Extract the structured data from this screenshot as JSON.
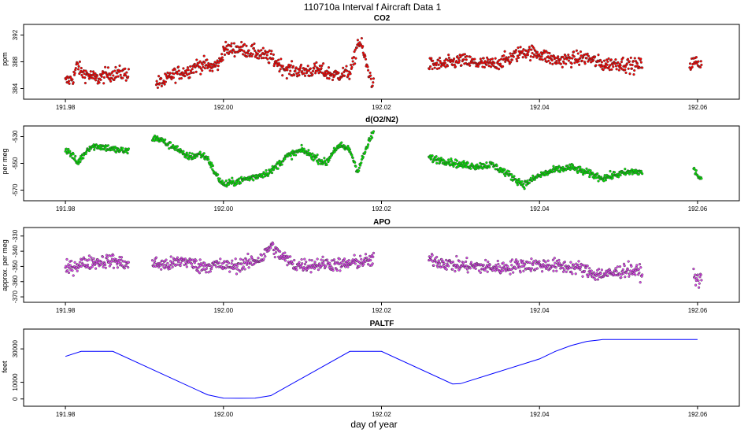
{
  "figure": {
    "title": "110710a   Interval f Aircraft Data 1",
    "xlabel": "day of year"
  },
  "chart_data": [
    {
      "type": "scatter",
      "title": "CO2",
      "ylabel": "ppm",
      "color": "#ff0000",
      "xlim": [
        191.978,
        192.062
      ],
      "ylim": [
        383.0,
        393.0
      ],
      "yticks": [
        384,
        388,
        392
      ],
      "xticks": [
        "191.98",
        "192.00",
        "192.02",
        "192.04",
        "192.06"
      ],
      "segments": [
        {
          "x": [
            191.98,
            191.981,
            191.9815,
            191.982,
            191.983,
            191.984,
            191.985,
            191.9865,
            191.988
          ],
          "y": [
            385.0,
            385.6,
            387.6,
            386.4,
            386.0,
            385.4,
            386.0,
            386.3,
            386.2
          ]
        },
        {
          "x": [
            191.9915,
            191.9925,
            191.9935,
            191.9945,
            191.9955,
            191.9965,
            191.9975,
            191.9985,
            191.9995,
            192.0,
            192.002,
            192.004,
            192.006,
            192.008,
            192.01,
            192.012,
            192.014,
            192.016,
            192.0165,
            192.017,
            192.0175,
            192.018,
            192.0185,
            192.019
          ],
          "y": [
            384.8,
            385.0,
            386.0,
            386.4,
            386.6,
            387.4,
            387.6,
            387.2,
            387.8,
            389.8,
            390.0,
            389.4,
            388.6,
            386.8,
            386.6,
            386.8,
            386.0,
            386.4,
            388.0,
            391.0,
            390.4,
            388.0,
            386.0,
            384.4
          ]
        },
        {
          "x": [
            192.026,
            192.028,
            192.03,
            192.032,
            192.034,
            192.036,
            192.038,
            192.04,
            192.042,
            192.044,
            192.046,
            192.048,
            192.05,
            192.052,
            192.053
          ],
          "y": [
            387.6,
            387.6,
            388.2,
            387.8,
            387.6,
            388.4,
            389.6,
            389.2,
            388.2,
            388.4,
            388.6,
            387.6,
            387.8,
            387.4,
            387.6
          ]
        },
        {
          "x": [
            192.059,
            192.0595,
            192.06,
            192.0605
          ],
          "y": [
            387.6,
            387.9,
            388.0,
            387.5
          ]
        }
      ],
      "noise": 0.75
    },
    {
      "type": "scatter",
      "title": "d(O2/N2)",
      "ylabel": "per meg",
      "color": "#00ee00",
      "xlim": [
        191.978,
        192.062
      ],
      "ylim": [
        -575,
        -525
      ],
      "yticks": [
        -530,
        -550,
        -570
      ],
      "xticks": [
        "191.98",
        "192.00",
        "192.02",
        "192.04",
        "192.06"
      ],
      "segments": [
        {
          "x": [
            191.98,
            191.981,
            191.9815,
            191.982,
            191.983,
            191.984,
            191.985,
            191.9865,
            191.988
          ],
          "y": [
            -539,
            -545,
            -550,
            -546,
            -538,
            -537,
            -538,
            -540,
            -541
          ]
        },
        {
          "x": [
            191.991,
            191.992,
            191.993,
            191.994,
            191.995,
            191.996,
            191.997,
            191.998,
            191.999,
            192.0,
            192.002,
            192.004,
            192.006,
            192.008,
            192.01,
            192.012,
            192.013,
            192.014,
            192.015,
            192.016,
            192.017,
            192.018,
            192.019
          ],
          "y": [
            -531,
            -532,
            -536,
            -538,
            -544,
            -545,
            -543,
            -546,
            -558,
            -566,
            -563,
            -560,
            -556,
            -545,
            -540,
            -547,
            -550,
            -540,
            -537,
            -540,
            -556,
            -540,
            -526
          ]
        },
        {
          "x": [
            192.026,
            192.028,
            192.03,
            192.032,
            192.034,
            192.036,
            192.038,
            192.04,
            192.042,
            192.044,
            192.046,
            192.048,
            192.05,
            192.052,
            192.053
          ],
          "y": [
            -546,
            -548,
            -551,
            -552,
            -551,
            -558,
            -566,
            -559,
            -555,
            -553,
            -557,
            -561,
            -558,
            -556,
            -557
          ]
        },
        {
          "x": [
            192.0595,
            192.06,
            192.0605
          ],
          "y": [
            -554,
            -559,
            -562
          ]
        }
      ],
      "noise": 1.9
    },
    {
      "type": "scatter",
      "title": "APO",
      "ylabel": "approx. per meg",
      "color": "#dd44ee",
      "xlim": [
        191.978,
        192.062
      ],
      "ylim": [
        -371,
        -327
      ],
      "yticks": [
        -330,
        -340,
        -350,
        -360,
        -370
      ],
      "xticks": [
        "191.98",
        "192.00",
        "192.02",
        "192.04",
        "192.06"
      ],
      "segments": [
        {
          "x": [
            191.98,
            191.982,
            191.984,
            191.986,
            191.988
          ],
          "y": [
            -352,
            -348,
            -347,
            -346,
            -349
          ]
        },
        {
          "x": [
            191.991,
            191.993,
            191.995,
            191.997,
            191.999,
            192.001,
            192.003,
            192.005,
            192.006,
            192.007,
            192.009,
            192.011,
            192.013,
            192.015,
            192.017,
            192.019
          ],
          "y": [
            -348,
            -349,
            -346,
            -350,
            -349,
            -350,
            -348,
            -344,
            -336,
            -342,
            -349,
            -349,
            -348,
            -349,
            -347,
            -346
          ]
        },
        {
          "x": [
            192.026,
            192.029,
            192.032,
            192.035,
            192.038,
            192.041,
            192.043,
            192.045,
            192.047,
            192.049,
            192.051,
            192.053
          ],
          "y": [
            -345,
            -349,
            -350,
            -351,
            -349,
            -349,
            -350,
            -351,
            -355,
            -355,
            -352,
            -354
          ]
        },
        {
          "x": [
            192.0595,
            192.06,
            192.0605
          ],
          "y": [
            -356,
            -359,
            -358
          ]
        }
      ],
      "noise": 3.2
    },
    {
      "type": "line",
      "title": "PALTF",
      "ylabel": "feet",
      "color": "#0000ff",
      "xlim": [
        191.978,
        192.062
      ],
      "ylim": [
        -2000,
        39500
      ],
      "yticks": [
        0,
        10000,
        30000
      ],
      "xticks": [
        "191.98",
        "192.00",
        "192.02",
        "192.04",
        "192.06"
      ],
      "segments": [
        {
          "x": [
            191.98,
            191.982,
            191.986,
            191.998,
            192.0,
            192.002,
            192.004,
            192.006,
            192.016,
            192.018,
            192.02,
            192.029,
            192.03,
            192.04,
            192.042,
            192.044,
            192.046,
            192.048,
            192.06
          ],
          "y": [
            25500,
            28500,
            28500,
            2500,
            500,
            400,
            500,
            2000,
            28500,
            28500,
            28500,
            9000,
            9200,
            24000,
            28500,
            32000,
            34500,
            35600,
            35600
          ]
        }
      ]
    }
  ]
}
